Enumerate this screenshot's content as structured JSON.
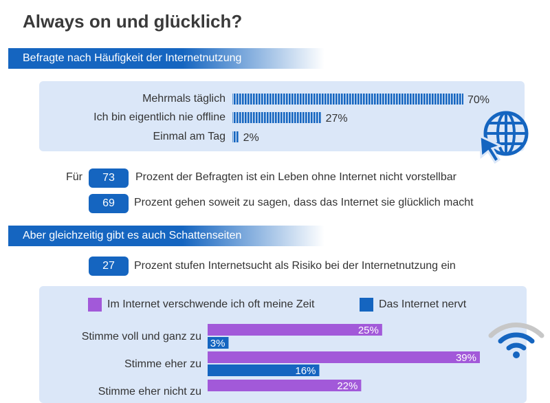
{
  "title": "Always on und glücklich?",
  "section1": {
    "header": "Befragte nach Häufigkeit der Internetnutzung"
  },
  "section2": {
    "header": "Aber gleichzeitig gibt es auch Schattenseiten"
  },
  "stats": [
    {
      "prefix": "Für",
      "value": "73",
      "text": "Prozent der Befragten ist ein Leben ohne Internet nicht vorstellbar"
    },
    {
      "value": "69",
      "text": "Prozent gehen soweit zu sagen, dass das Internet sie glücklich macht"
    },
    {
      "value": "27",
      "text": "Prozent stufen Internetsucht als Risiko bei der Internetnutzung ein"
    }
  ],
  "icons": {
    "globe": "globe-cursor-icon",
    "wifi": "wifi-icon"
  },
  "colors": {
    "blue": "#1565c0",
    "purple": "#a259d9",
    "panel": "#dbe7f8"
  },
  "chart_data": [
    {
      "type": "bar",
      "categories": [
        "Mehrmals täglich",
        "Ich bin eigentlich nie offline",
        "Einmal am Tag"
      ],
      "values": [
        70,
        27,
        2
      ],
      "labels": [
        "70%",
        "27%",
        "2%"
      ],
      "unit": "%"
    },
    {
      "type": "bar",
      "categories": [
        "Stimme voll und ganz zu",
        "Stimme eher zu",
        "Stimme eher nicht zu"
      ],
      "series": [
        {
          "name": "Im Internet verschwende ich oft meine Zeit",
          "values": [
            25,
            39,
            22
          ],
          "labels": [
            "25%",
            "39%",
            "22%"
          ]
        },
        {
          "name": "Das Internet nervt",
          "values": [
            3,
            16,
            null
          ],
          "labels": [
            "3%",
            "16%",
            ""
          ]
        }
      ],
      "unit": "%"
    }
  ]
}
